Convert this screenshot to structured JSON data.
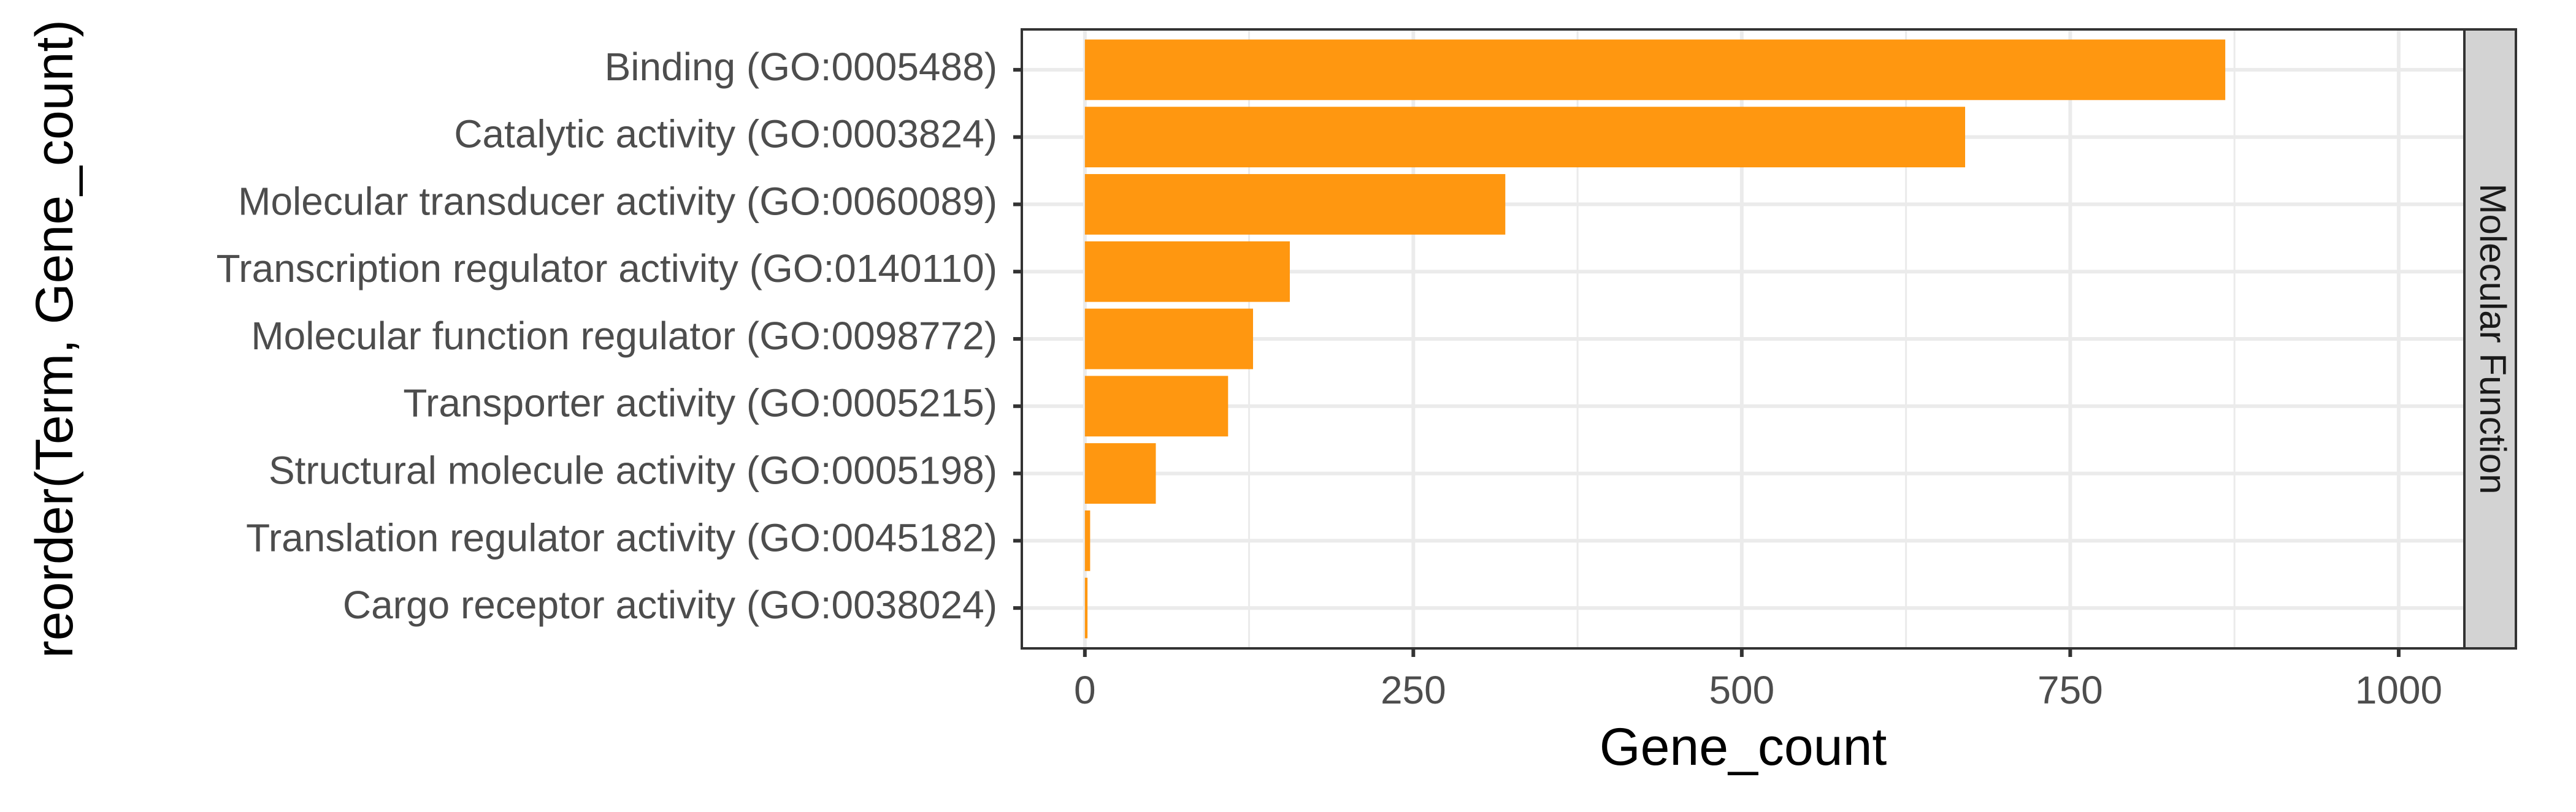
{
  "chart_data": {
    "type": "bar",
    "orientation": "horizontal",
    "categories": [
      "Binding (GO:0005488)",
      "Catalytic activity (GO:0003824)",
      "Molecular transducer activity (GO:0060089)",
      "Transcription regulator activity (GO:0140110)",
      "Molecular function regulator (GO:0098772)",
      "Transporter activity (GO:0005215)",
      "Structural molecule activity (GO:0005198)",
      "Translation regulator activity (GO:0045182)",
      "Cargo receptor activity (GO:0038024)"
    ],
    "values": [
      868,
      670,
      320,
      156,
      128,
      109,
      54,
      4,
      2
    ],
    "xlabel": "Gene_count",
    "ylabel": "reorder(Term, Gene_count)",
    "xlim": [
      -48,
      1050
    ],
    "xticks": [
      0,
      250,
      500,
      750,
      1000
    ],
    "xtick_labels": [
      "0",
      "250",
      "500",
      "750",
      "1000"
    ],
    "facet_label": "Molecular Function",
    "grid": true,
    "bar_color": "#FF9710",
    "strip_color": "#D3D3D3",
    "grid_color": "#EBEBEB"
  }
}
